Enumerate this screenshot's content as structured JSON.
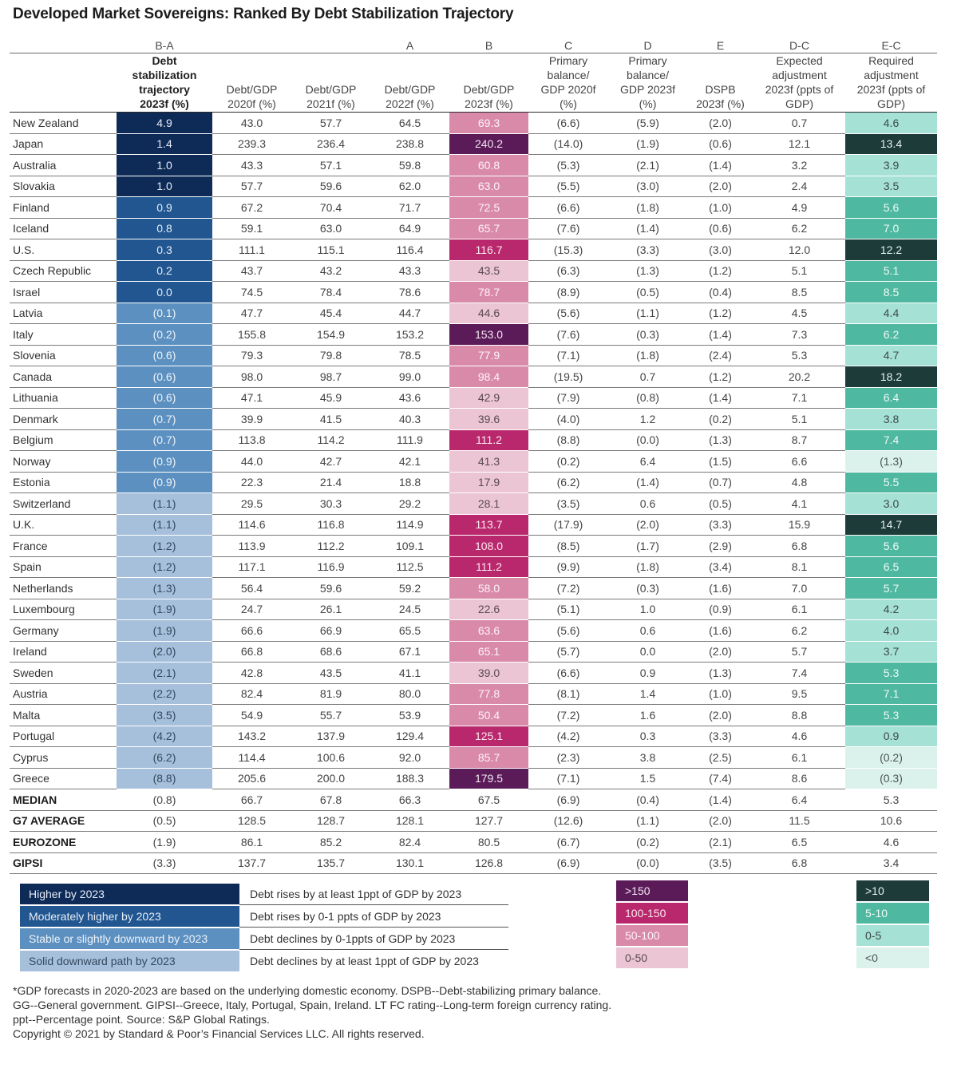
{
  "chart_data": {
    "type": "table",
    "title": "Developed Market Sovereigns: Ranked By Debt Stabilization Trajectory",
    "column_codes": [
      "",
      "B-A",
      "",
      "",
      "A",
      "B",
      "C",
      "D",
      "E",
      "D-C",
      "E-C"
    ],
    "header_lines": [
      [],
      [
        "Debt",
        "stabilization",
        "trajectory",
        "2023f (%)"
      ],
      [
        "Debt/GDP",
        "2020f (%)"
      ],
      [
        "Debt/GDP",
        "2021f (%)"
      ],
      [
        "Debt/GDP",
        "2022f (%)"
      ],
      [
        "Debt/GDP",
        "2023f (%)"
      ],
      [
        "Primary",
        "balance/",
        "GDP 2020f",
        "(%)"
      ],
      [
        "Primary",
        "balance/",
        "GDP 2023f",
        "(%)"
      ],
      [
        "DSPB",
        "2023f (%)"
      ],
      [
        "Expected",
        "adjustment",
        "2023f (ppts of",
        "GDP)"
      ],
      [
        "Required",
        "adjustment",
        "2023f (ppts of",
        "GDP)"
      ]
    ],
    "rows": [
      [
        "New Zealand",
        "4.9",
        "43.0",
        "57.7",
        "64.5",
        "69.3",
        "(6.6)",
        "(5.9)",
        "(2.0)",
        "0.7",
        "4.6"
      ],
      [
        "Japan",
        "1.4",
        "239.3",
        "236.4",
        "238.8",
        "240.2",
        "(14.0)",
        "(1.9)",
        "(0.6)",
        "12.1",
        "13.4"
      ],
      [
        "Australia",
        "1.0",
        "43.3",
        "57.1",
        "59.8",
        "60.8",
        "(5.3)",
        "(2.1)",
        "(1.4)",
        "3.2",
        "3.9"
      ],
      [
        "Slovakia",
        "1.0",
        "57.7",
        "59.6",
        "62.0",
        "63.0",
        "(5.5)",
        "(3.0)",
        "(2.0)",
        "2.4",
        "3.5"
      ],
      [
        "Finland",
        "0.9",
        "67.2",
        "70.4",
        "71.7",
        "72.5",
        "(6.6)",
        "(1.8)",
        "(1.0)",
        "4.9",
        "5.6"
      ],
      [
        "Iceland",
        "0.8",
        "59.1",
        "63.0",
        "64.9",
        "65.7",
        "(7.6)",
        "(1.4)",
        "(0.6)",
        "6.2",
        "7.0"
      ],
      [
        "U.S.",
        "0.3",
        "111.1",
        "115.1",
        "116.4",
        "116.7",
        "(15.3)",
        "(3.3)",
        "(3.0)",
        "12.0",
        "12.2"
      ],
      [
        "Czech Republic",
        "0.2",
        "43.7",
        "43.2",
        "43.3",
        "43.5",
        "(6.3)",
        "(1.3)",
        "(1.2)",
        "5.1",
        "5.1"
      ],
      [
        "Israel",
        "0.0",
        "74.5",
        "78.4",
        "78.6",
        "78.7",
        "(8.9)",
        "(0.5)",
        "(0.4)",
        "8.5",
        "8.5"
      ],
      [
        "Latvia",
        "(0.1)",
        "47.7",
        "45.4",
        "44.7",
        "44.6",
        "(5.6)",
        "(1.1)",
        "(1.2)",
        "4.5",
        "4.4"
      ],
      [
        "Italy",
        "(0.2)",
        "155.8",
        "154.9",
        "153.2",
        "153.0",
        "(7.6)",
        "(0.3)",
        "(1.4)",
        "7.3",
        "6.2"
      ],
      [
        "Slovenia",
        "(0.6)",
        "79.3",
        "79.8",
        "78.5",
        "77.9",
        "(7.1)",
        "(1.8)",
        "(2.4)",
        "5.3",
        "4.7"
      ],
      [
        "Canada",
        "(0.6)",
        "98.0",
        "98.7",
        "99.0",
        "98.4",
        "(19.5)",
        "0.7",
        "(1.2)",
        "20.2",
        "18.2"
      ],
      [
        "Lithuania",
        "(0.6)",
        "47.1",
        "45.9",
        "43.6",
        "42.9",
        "(7.9)",
        "(0.8)",
        "(1.4)",
        "7.1",
        "6.4"
      ],
      [
        "Denmark",
        "(0.7)",
        "39.9",
        "41.5",
        "40.3",
        "39.6",
        "(4.0)",
        "1.2",
        "(0.2)",
        "5.1",
        "3.8"
      ],
      [
        "Belgium",
        "(0.7)",
        "113.8",
        "114.2",
        "111.9",
        "111.2",
        "(8.8)",
        "(0.0)",
        "(1.3)",
        "8.7",
        "7.4"
      ],
      [
        "Norway",
        "(0.9)",
        "44.0",
        "42.7",
        "42.1",
        "41.3",
        "(0.2)",
        "6.4",
        "(1.5)",
        "6.6",
        "(1.3)"
      ],
      [
        "Estonia",
        "(0.9)",
        "22.3",
        "21.4",
        "18.8",
        "17.9",
        "(6.2)",
        "(1.4)",
        "(0.7)",
        "4.8",
        "5.5"
      ],
      [
        "Switzerland",
        "(1.1)",
        "29.5",
        "30.3",
        "29.2",
        "28.1",
        "(3.5)",
        "0.6",
        "(0.5)",
        "4.1",
        "3.0"
      ],
      [
        "U.K.",
        "(1.1)",
        "114.6",
        "116.8",
        "114.9",
        "113.7",
        "(17.9)",
        "(2.0)",
        "(3.3)",
        "15.9",
        "14.7"
      ],
      [
        "France",
        "(1.2)",
        "113.9",
        "112.2",
        "109.1",
        "108.0",
        "(8.5)",
        "(1.7)",
        "(2.9)",
        "6.8",
        "5.6"
      ],
      [
        "Spain",
        "(1.2)",
        "117.1",
        "116.9",
        "112.5",
        "111.2",
        "(9.9)",
        "(1.8)",
        "(3.4)",
        "8.1",
        "6.5"
      ],
      [
        "Netherlands",
        "(1.3)",
        "56.4",
        "59.6",
        "59.2",
        "58.0",
        "(7.2)",
        "(0.3)",
        "(1.6)",
        "7.0",
        "5.7"
      ],
      [
        "Luxembourg",
        "(1.9)",
        "24.7",
        "26.1",
        "24.5",
        "22.6",
        "(5.1)",
        "1.0",
        "(0.9)",
        "6.1",
        "4.2"
      ],
      [
        "Germany",
        "(1.9)",
        "66.6",
        "66.9",
        "65.5",
        "63.6",
        "(5.6)",
        "0.6",
        "(1.6)",
        "6.2",
        "4.0"
      ],
      [
        "Ireland",
        "(2.0)",
        "66.8",
        "68.6",
        "67.1",
        "65.1",
        "(5.7)",
        "0.0",
        "(2.0)",
        "5.7",
        "3.7"
      ],
      [
        "Sweden",
        "(2.1)",
        "42.8",
        "43.5",
        "41.1",
        "39.0",
        "(6.6)",
        "0.9",
        "(1.3)",
        "7.4",
        "5.3"
      ],
      [
        "Austria",
        "(2.2)",
        "82.4",
        "81.9",
        "80.0",
        "77.8",
        "(8.1)",
        "1.4",
        "(1.0)",
        "9.5",
        "7.1"
      ],
      [
        "Malta",
        "(3.5)",
        "54.9",
        "55.7",
        "53.9",
        "50.4",
        "(7.2)",
        "1.6",
        "(2.0)",
        "8.8",
        "5.3"
      ],
      [
        "Portugal",
        "(4.2)",
        "143.2",
        "137.9",
        "129.4",
        "125.1",
        "(4.2)",
        "0.3",
        "(3.3)",
        "4.6",
        "0.9"
      ],
      [
        "Cyprus",
        "(6.2)",
        "114.4",
        "100.6",
        "92.0",
        "85.7",
        "(2.3)",
        "3.8",
        "(2.5)",
        "6.1",
        "(0.2)"
      ],
      [
        "Greece",
        "(8.8)",
        "205.6",
        "200.0",
        "188.3",
        "179.5",
        "(7.1)",
        "1.5",
        "(7.4)",
        "8.6",
        "(0.3)"
      ]
    ],
    "summary_rows": [
      [
        "MEDIAN",
        "(0.8)",
        "66.7",
        "67.8",
        "66.3",
        "67.5",
        "(6.9)",
        "(0.4)",
        "(1.4)",
        "6.4",
        "5.3"
      ],
      [
        "G7 AVERAGE",
        "(0.5)",
        "128.5",
        "128.7",
        "128.1",
        "127.7",
        "(12.6)",
        "(1.1)",
        "(2.0)",
        "11.5",
        "10.6"
      ],
      [
        "EUROZONE",
        "(1.9)",
        "86.1",
        "85.2",
        "82.4",
        "80.5",
        "(6.7)",
        "(0.2)",
        "(2.1)",
        "6.5",
        "4.6"
      ],
      [
        "GIPSI",
        "(3.3)",
        "137.7",
        "135.7",
        "130.1",
        "126.8",
        "(6.9)",
        "(0.0)",
        "(3.5)",
        "6.8",
        "3.4"
      ]
    ]
  },
  "legends": {
    "trajectory": [
      {
        "label": "Higher by 2023",
        "description": "Debt rises by at least 1ppt of GDP by 2023",
        "color": "#0e2b58",
        "text_color": "#e6ecf5",
        "min": 1
      },
      {
        "label": "Moderately higher by 2023",
        "description": "Debt rises by 0-1 ppts of GDP by 2023",
        "color": "#215690",
        "text_color": "#e6ecf5",
        "min": 0
      },
      {
        "label": "Stable or slightly downward by 2023",
        "description": "Debt declines by 0-1ppts of GDP by 2023",
        "color": "#5c90c0",
        "text_color": "#eef3f9",
        "min": -1
      },
      {
        "label": "Solid downward path by 2023",
        "description": "Debt declines by at least 1ppt of GDP by 2023",
        "color": "#a6c0dc",
        "text_color": "#34485e",
        "min": null
      }
    ],
    "debt_gdp_2023": [
      {
        "label": ">150",
        "color": "#5b1b59",
        "text_color": "#f3e8f1",
        "min": 150
      },
      {
        "label": "100-150",
        "color": "#b9286c",
        "text_color": "#fbeaf1",
        "min": 100
      },
      {
        "label": "50-100",
        "color": "#d98aa9",
        "text_color": "#fdf3f7",
        "min": 50
      },
      {
        "label": "0-50",
        "color": "#ebc5d3",
        "text_color": "#5a4a50",
        "min": 0
      }
    ],
    "required_adjustment": [
      {
        "label": ">10",
        "color": "#1d3b38",
        "text_color": "#e4f3ef",
        "min": 10
      },
      {
        "label": "5-10",
        "color": "#4fb8a0",
        "text_color": "#effaf7",
        "min": 5
      },
      {
        "label": "0-5",
        "color": "#a5e1d5",
        "text_color": "#3d4a47",
        "min": 0
      },
      {
        "label": "<0",
        "color": "#dbf2ec",
        "text_color": "#4a5552",
        "min": null
      }
    ]
  },
  "footnote": [
    "*GDP forecasts in 2020-2023 are based on the underlying domestic economy. DSPB--Debt-stabilizing primary balance.",
    "GG--General government. GIPSI--Greece, Italy, Portugal, Spain, Ireland. LT FC rating--Long-term foreign currency rating.",
    "ppt--Percentage point. Source: S&P Global Ratings.",
    "Copyright © 2021 by Standard & Poor’s Financial Services LLC. All rights reserved."
  ]
}
